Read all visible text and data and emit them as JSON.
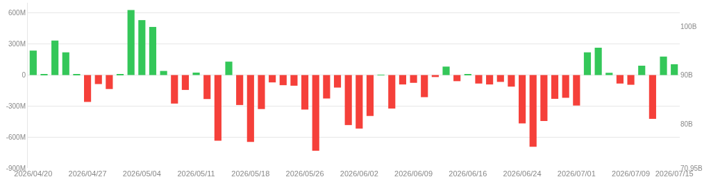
{
  "chart_data": {
    "type": "bar",
    "categories": [
      "2026/04/20",
      null,
      null,
      null,
      null,
      "2026/04/27",
      null,
      null,
      null,
      null,
      "2026/05/04",
      null,
      null,
      null,
      null,
      "2026/05/11",
      null,
      null,
      null,
      null,
      "2026/05/18",
      null,
      null,
      null,
      null,
      "2026/05/26",
      null,
      null,
      null,
      null,
      "2026/06/02",
      null,
      null,
      null,
      null,
      "2026/06/09",
      null,
      null,
      null,
      null,
      "2026/06/16",
      null,
      null,
      null,
      null,
      "2026/06/24",
      null,
      null,
      null,
      null,
      "2026/07/01",
      null,
      null,
      null,
      null,
      "2026/07/09",
      null,
      null,
      null,
      "2026/07/15"
    ],
    "values": [
      237,
      10,
      334,
      220,
      10,
      -260,
      -87,
      -135,
      10,
      629,
      532,
      466,
      40,
      -276,
      -144,
      24,
      -232,
      -636,
      130,
      -290,
      -648,
      -329,
      -71,
      -98,
      -103,
      -334,
      -733,
      -227,
      -121,
      -484,
      -518,
      -396,
      2,
      -324,
      -91,
      -75,
      -214,
      -19,
      82,
      -59,
      5,
      -82,
      -91,
      -66,
      -112,
      -468,
      -694,
      -445,
      -230,
      -220,
      -295,
      220,
      265,
      22,
      -82,
      -94,
      91,
      -424,
      179,
      105
    ],
    "colors": [
      "#34c759",
      "#34c759",
      "#34c759",
      "#34c759",
      "#34c759",
      "#f5403a",
      "#f5403a",
      "#f5403a",
      "#34c759",
      "#34c759",
      "#34c759",
      "#34c759",
      "#34c759",
      "#f5403a",
      "#f5403a",
      "#34c759",
      "#f5403a",
      "#f5403a",
      "#34c759",
      "#f5403a",
      "#f5403a",
      "#f5403a",
      "#f5403a",
      "#f5403a",
      "#f5403a",
      "#f5403a",
      "#f5403a",
      "#f5403a",
      "#f5403a",
      "#f5403a",
      "#f5403a",
      "#f5403a",
      "#34c759",
      "#f5403a",
      "#f5403a",
      "#f5403a",
      "#f5403a",
      "#f5403a",
      "#34c759",
      "#f5403a",
      "#34c759",
      "#f5403a",
      "#f5403a",
      "#f5403a",
      "#f5403a",
      "#f5403a",
      "#f5403a",
      "#f5403a",
      "#f5403a",
      "#f5403a",
      "#f5403a",
      "#34c759",
      "#34c759",
      "#34c759",
      "#f5403a",
      "#f5403a",
      "#34c759",
      "#f5403a",
      "#34c759",
      "#34c759"
    ],
    "ylim": [
      -900,
      700
    ],
    "yticks": [
      {
        "value": 600,
        "label": "600M"
      },
      {
        "value": 300,
        "label": "300M"
      },
      0,
      {
        "value": -300,
        "label": "-300M"
      },
      {
        "value": -600,
        "label": "-600M"
      },
      {
        "value": -900,
        "label": "-900M"
      }
    ],
    "y2lim": [
      70.95,
      104.82
    ],
    "y2ticks": [
      {
        "value": 100,
        "label": "100B"
      },
      {
        "value": 90,
        "label": "90B"
      },
      {
        "value": 80,
        "label": "80B"
      },
      {
        "value": 70.95,
        "label": "70.95B"
      }
    ],
    "grid": "y"
  }
}
